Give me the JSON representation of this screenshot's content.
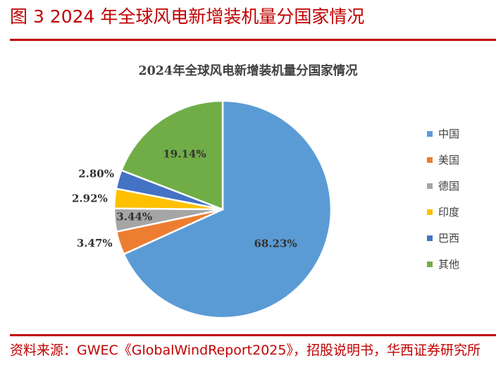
{
  "figure": {
    "title": "图 3 2024 年全球风电新增装机量分国家情况",
    "source": "资料来源：GWEC《GlobalWindReport2025》，招股说明书，华西证券研究所"
  },
  "chart_data": {
    "type": "pie",
    "title": "2024年全球风电新增装机量分国家情况",
    "legend_position": "right",
    "slices": [
      {
        "name": "中国",
        "value": 68.23,
        "label": "68.23%",
        "color": "#5b9bd5"
      },
      {
        "name": "美国",
        "value": 3.47,
        "label": "3.47%",
        "color": "#ed7d31"
      },
      {
        "name": "德国",
        "value": 3.44,
        "label": "3.44%",
        "color": "#a5a5a5"
      },
      {
        "name": "印度",
        "value": 2.92,
        "label": "2.92%",
        "color": "#ffc000"
      },
      {
        "name": "巴西",
        "value": 2.8,
        "label": "2.80%",
        "color": "#4472c4"
      },
      {
        "name": "其他",
        "value": 19.14,
        "label": "19.14%",
        "color": "#70ad47"
      }
    ]
  }
}
